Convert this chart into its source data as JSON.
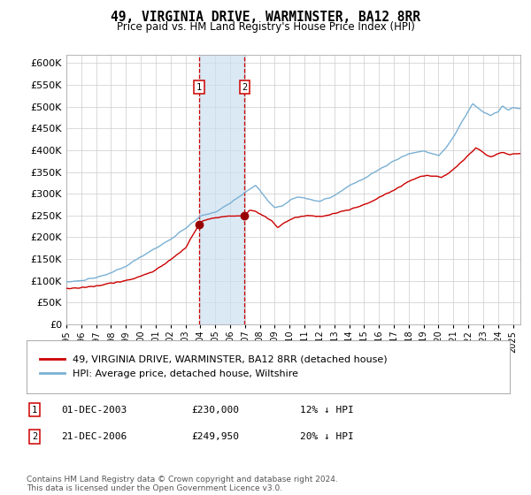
{
  "title": "49, VIRGINIA DRIVE, WARMINSTER, BA12 8RR",
  "subtitle": "Price paid vs. HM Land Registry's House Price Index (HPI)",
  "title_fontsize": 10.5,
  "subtitle_fontsize": 8.5,
  "ylim": [
    0,
    620000
  ],
  "yticks": [
    0,
    50000,
    100000,
    150000,
    200000,
    250000,
    300000,
    350000,
    400000,
    450000,
    500000,
    550000,
    600000
  ],
  "hpi_color": "#7ab0d4",
  "sale_color": "#cc0000",
  "sale_dot_color": "#990000",
  "vline_color": "#cc0000",
  "shading_color": "#cce0f0",
  "grid_color": "#cccccc",
  "bg_color": "#ffffff",
  "purchase1_date_num": 2003.92,
  "purchase1_price": 230000,
  "purchase2_date_num": 2006.97,
  "purchase2_price": 249950,
  "legend1_label": "49, VIRGINIA DRIVE, WARMINSTER, BA12 8RR (detached house)",
  "legend2_label": "HPI: Average price, detached house, Wiltshire",
  "table_row1": [
    "1",
    "01-DEC-2003",
    "£230,000",
    "12% ↓ HPI"
  ],
  "table_row2": [
    "2",
    "21-DEC-2006",
    "£249,950",
    "20% ↓ HPI"
  ],
  "footer": "Contains HM Land Registry data © Crown copyright and database right 2024.\nThis data is licensed under the Open Government Licence v3.0.",
  "xstart": 1995.0,
  "xend": 2025.5
}
